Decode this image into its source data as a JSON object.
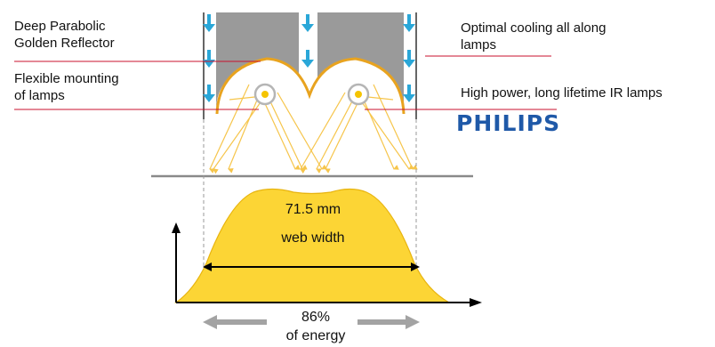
{
  "labels": {
    "reflector": "Deep Parabolic\nGolden Reflector",
    "mounting": "Flexible mounting\nof lamps",
    "cooling": "Optimal cooling all along\nlamps",
    "lamps": "High power, long lifetime IR lamps",
    "brand": "PHILIPS",
    "width_value": "71.5 mm",
    "width_label": "web width",
    "energy": "86%\nof energy"
  },
  "colors": {
    "profile_fill": "#fcd535",
    "profile_stroke": "#e8b40f",
    "reflector": "#e8a31f",
    "ray": "#f6c54b",
    "cooling_arrow": "#2aa7d8",
    "housing": "#9a9a9a",
    "leader_line": "#c8102e",
    "brand": "#1f59a8",
    "gray_arrow": "#a3a3a3"
  },
  "icons": [
    "cooling-arrow-icon",
    "lamp-icon",
    "axis-arrow-icon",
    "double-arrow-icon"
  ]
}
